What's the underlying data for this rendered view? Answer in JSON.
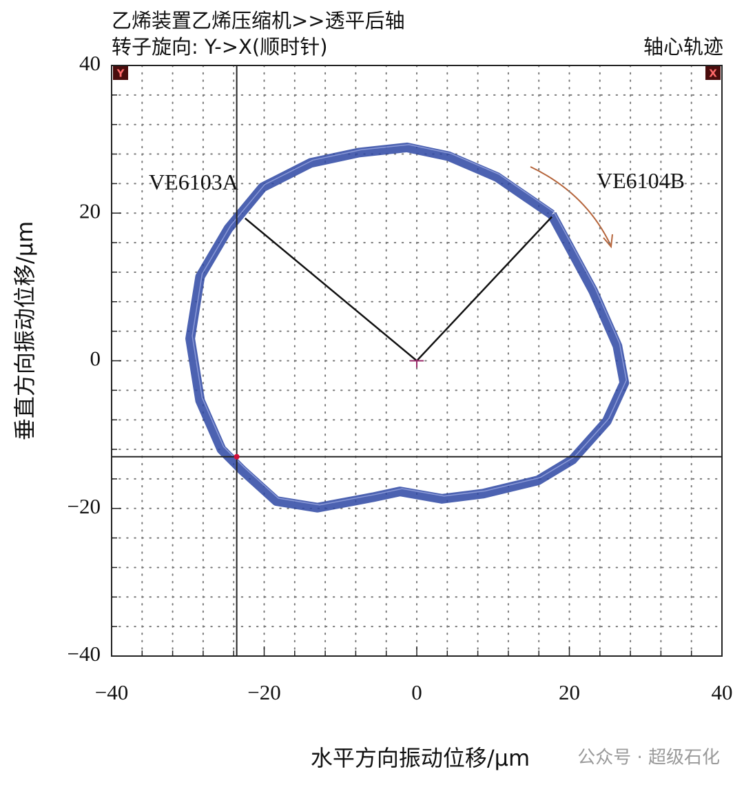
{
  "chart_data": {
    "type": "orbit",
    "title": "乙烯装置乙烯压缩机>>透平后轴",
    "subtitle": "转子旋向: Y->X(顺时针)",
    "corner_title": "轴心轨迹",
    "x_label": "水平方向振动位移/μm",
    "y_label": "垂直方向振动位移/μm",
    "watermark": "公众号 · 超级石化",
    "corner_markers": [
      "Y",
      "X"
    ],
    "color": "#2d46a3",
    "x": [
      17.7,
      23.1,
      26.3,
      27.2,
      24.9,
      20.4,
      15.9,
      8.7,
      3.3,
      -2.2,
      -5.8,
      -13,
      -18.4,
      -22.9,
      -25.6,
      -28.4,
      -29.7,
      -28.4,
      -24.7,
      -20.2,
      -13.9,
      -7.6,
      -1.3,
      4.2,
      10.5,
      17.7
    ],
    "values": [
      19.8,
      9.5,
      2,
      -3,
      -8.2,
      -13.4,
      -16.2,
      -18,
      -18.7,
      -17.7,
      -18.5,
      -19.9,
      -19,
      -14.8,
      -12,
      -5.4,
      3,
      11.4,
      17.9,
      23.5,
      26.8,
      28.2,
      28.9,
      27.7,
      24.9,
      19.8
    ],
    "cursor": {
      "x": -23.6,
      "y": -13
    },
    "probes": [
      {
        "label": "VE6103A",
        "x": -22.5,
        "y": 19.3
      },
      {
        "label": "VE6104B",
        "x": 17.7,
        "y": 19.5
      }
    ],
    "xlim": [
      -40,
      40
    ],
    "ylim": [
      -40,
      40
    ],
    "xticks": [
      {
        "value": -40,
        "label": "−40"
      },
      {
        "value": -20,
        "label": "−20"
      },
      0,
      20,
      40
    ],
    "yticks": [
      40,
      20,
      0,
      {
        "value": -20,
        "label": "−20"
      },
      {
        "value": -40,
        "label": "−40"
      }
    ],
    "minorticks": [
      -36,
      -32,
      -28,
      -24,
      -16,
      -12,
      -8,
      -4,
      4,
      8,
      12,
      16,
      24,
      28,
      32,
      36
    ],
    "grid": true
  }
}
